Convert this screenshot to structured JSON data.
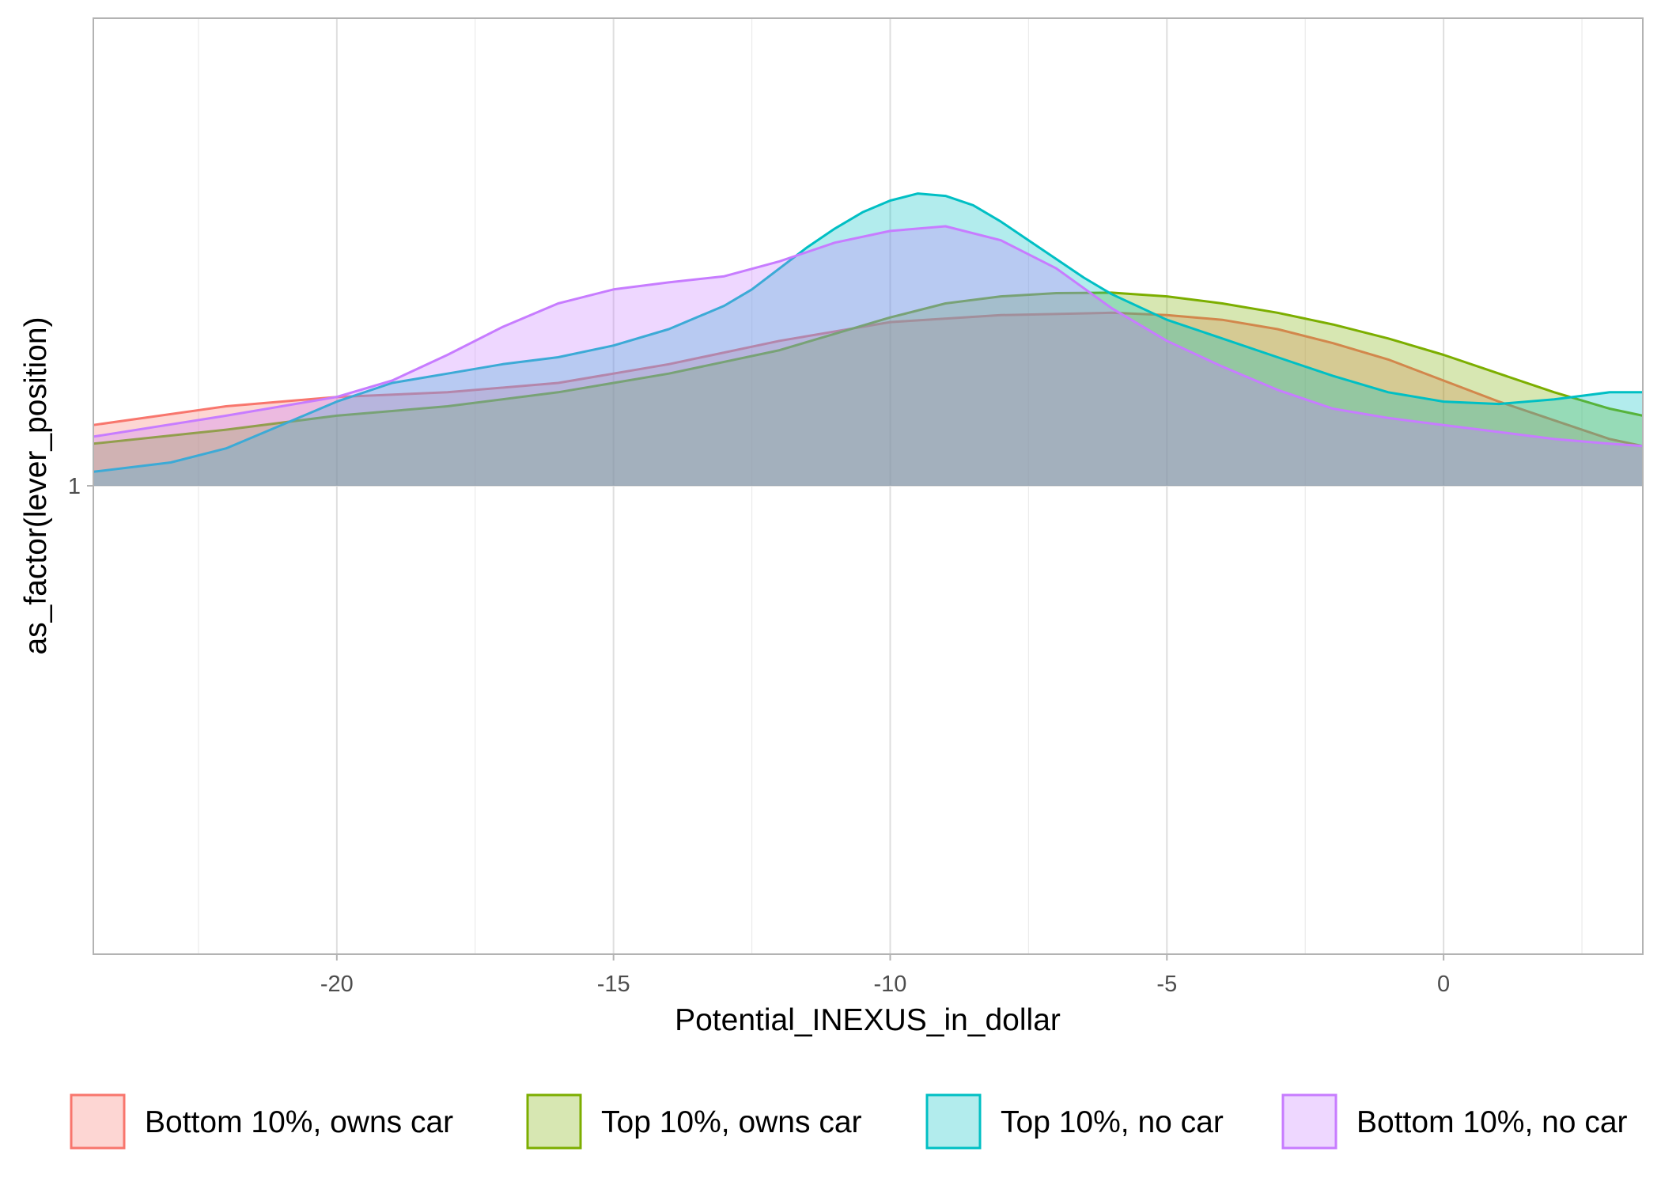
{
  "chart_data": {
    "type": "area",
    "xlabel": "Potential_INEXUS_in_dollar",
    "ylabel": "as_factor(lever_position)",
    "xlim": [
      -24.4,
      3.6
    ],
    "x_ticks": [
      -20,
      -15,
      -10,
      -5,
      0
    ],
    "y_ticks": [
      {
        "label": "1",
        "value": 0
      }
    ],
    "ylim": [
      -1.0,
      1.0
    ],
    "grid": true,
    "legend_position": "bottom",
    "series": [
      {
        "name": "Bottom 10%, owns car",
        "color": "#F8766D",
        "x": [
          -24.4,
          -22,
          -20,
          -18,
          -16,
          -14,
          -12,
          -10,
          -8,
          -6,
          -5,
          -4,
          -3,
          -2,
          -1,
          0,
          1,
          2,
          3,
          3.6
        ],
        "y": [
          0.13,
          0.17,
          0.19,
          0.2,
          0.22,
          0.26,
          0.31,
          0.35,
          0.365,
          0.37,
          0.365,
          0.355,
          0.335,
          0.305,
          0.27,
          0.225,
          0.18,
          0.14,
          0.1,
          0.085
        ]
      },
      {
        "name": "Top 10%, owns car",
        "color": "#7CAE00",
        "x": [
          -24.4,
          -22,
          -20,
          -18,
          -16,
          -14,
          -12,
          -10,
          -9,
          -8,
          -7,
          -6,
          -5,
          -4,
          -3,
          -2,
          -1,
          0,
          1,
          2,
          3,
          3.6
        ],
        "y": [
          0.09,
          0.12,
          0.15,
          0.17,
          0.2,
          0.24,
          0.29,
          0.36,
          0.39,
          0.405,
          0.412,
          0.413,
          0.405,
          0.39,
          0.37,
          0.345,
          0.315,
          0.28,
          0.24,
          0.2,
          0.165,
          0.15
        ]
      },
      {
        "name": "Top 10%, no car",
        "color": "#00BFC4",
        "x": [
          -24.4,
          -23,
          -22,
          -21,
          -20,
          -19,
          -18,
          -17,
          -16,
          -15,
          -14,
          -13,
          -12.5,
          -12,
          -11.5,
          -11,
          -10.5,
          -10,
          -9.5,
          -9,
          -8.5,
          -8,
          -7.5,
          -7,
          -6.5,
          -6,
          -5,
          -4,
          -3,
          -2,
          -1,
          0,
          1,
          2,
          3,
          3.6
        ],
        "y": [
          0.03,
          0.05,
          0.08,
          0.13,
          0.18,
          0.22,
          0.24,
          0.26,
          0.275,
          0.3,
          0.335,
          0.385,
          0.42,
          0.465,
          0.51,
          0.55,
          0.585,
          0.61,
          0.625,
          0.62,
          0.6,
          0.565,
          0.525,
          0.485,
          0.445,
          0.41,
          0.355,
          0.315,
          0.275,
          0.235,
          0.2,
          0.18,
          0.175,
          0.185,
          0.2,
          0.2
        ]
      },
      {
        "name": "Bottom 10%, no car",
        "color": "#C77CFF",
        "x": [
          -24.4,
          -22,
          -20,
          -19,
          -18,
          -17,
          -16,
          -15,
          -14,
          -13,
          -12,
          -11,
          -10,
          -9,
          -8,
          -7,
          -6,
          -5,
          -4,
          -3,
          -2,
          -1,
          0,
          1,
          2,
          3,
          3.6
        ],
        "y": [
          0.105,
          0.15,
          0.19,
          0.225,
          0.28,
          0.34,
          0.39,
          0.42,
          0.435,
          0.448,
          0.48,
          0.52,
          0.545,
          0.555,
          0.525,
          0.465,
          0.38,
          0.31,
          0.255,
          0.205,
          0.165,
          0.145,
          0.13,
          0.115,
          0.1,
          0.09,
          0.085
        ]
      }
    ]
  }
}
